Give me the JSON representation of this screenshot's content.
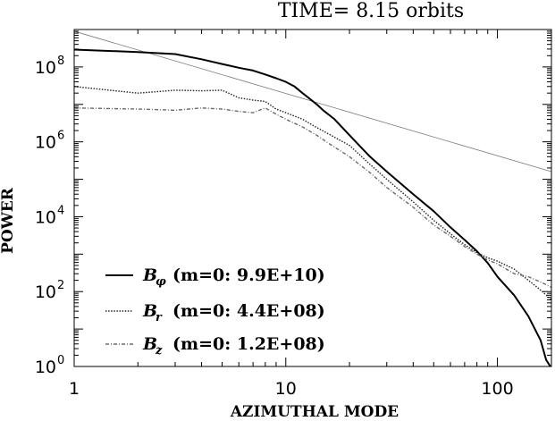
{
  "chart_data": {
    "type": "line",
    "title": "TIME= 8.15 orbits",
    "xlabel": "AZIMUTHAL MODE",
    "ylabel": "POWER",
    "xscale": "log",
    "yscale": "log",
    "xlim": [
      1,
      180
    ],
    "ylim": [
      1,
      1000000000.0
    ],
    "grid": false,
    "legend_position": "bottom-left",
    "x_ticks": [
      {
        "value": 1,
        "label": "1"
      },
      {
        "value": 10,
        "label": "10"
      },
      {
        "value": 100,
        "label": "100"
      }
    ],
    "y_ticks": [
      {
        "value": 1,
        "base": "10",
        "exp": "0"
      },
      {
        "value": 100,
        "base": "10",
        "exp": "2"
      },
      {
        "value": 10000,
        "base": "10",
        "exp": "4"
      },
      {
        "value": 1000000,
        "base": "10",
        "exp": "6"
      },
      {
        "value": 100000000,
        "base": "10",
        "exp": "8"
      }
    ],
    "series": [
      {
        "symbol": "B",
        "subscript": "φ",
        "label_text": "(m=0: 9.9E+10)",
        "style": "solid",
        "color": "#000000",
        "x": [
          1,
          2,
          3,
          4,
          5,
          6,
          7,
          8,
          9,
          10,
          11,
          12,
          13,
          14,
          15,
          17,
          20,
          25,
          30,
          40,
          50,
          60,
          70,
          80,
          90,
          100,
          120,
          140,
          160,
          170,
          180
        ],
        "y": [
          290000000.0,
          250000000.0,
          220000000.0,
          160000000.0,
          120000000.0,
          95000000.0,
          80000000.0,
          63000000.0,
          50000000.0,
          40000000.0,
          30000000.0,
          20000000.0,
          14000000.0,
          10000000.0,
          7000000.0,
          4000000.0,
          1500000.0,
          400000.0,
          160000.0,
          40000.0,
          14000.0,
          5200.0,
          2400.0,
          1200.0,
          580,
          250,
          80,
          22,
          5,
          1.5,
          0.9
        ]
      },
      {
        "symbol": "B",
        "subscript": "r",
        "label_text": "(m=0: 4.4E+08)",
        "style": "dotted",
        "color": "#222222",
        "x": [
          1,
          2,
          3,
          4,
          5,
          6,
          7,
          8,
          9,
          10,
          12,
          14,
          16,
          20,
          25,
          30,
          40,
          50,
          60,
          70,
          80,
          90,
          100,
          120,
          140,
          160,
          180
        ],
        "y": [
          30000000.0,
          20000000.0,
          24000000.0,
          23000000.0,
          24000000.0,
          15000000.0,
          13000000.0,
          12000000.0,
          7500000.0,
          6000000.0,
          4000000.0,
          2400000.0,
          1600000.0,
          800000.0,
          250000.0,
          100000.0,
          25000.0,
          8000.0,
          3500.0,
          1800.0,
          1100.0,
          800,
          650,
          400,
          200,
          110,
          60
        ]
      },
      {
        "symbol": "B",
        "subscript": "z",
        "label_text": "(m=0: 1.2E+08)",
        "style": "dash-dot",
        "color": "#6a6a6a",
        "x": [
          1,
          2,
          3,
          4,
          5,
          6,
          7,
          8,
          9,
          10,
          12,
          14,
          16,
          20,
          25,
          30,
          40,
          50,
          60,
          70,
          80,
          90,
          100,
          110,
          120,
          140,
          160,
          180
        ],
        "y": [
          8000000.0,
          7500000.0,
          7000000.0,
          8000000.0,
          7500000.0,
          6500000.0,
          6000000.0,
          8000000.0,
          5500000.0,
          4000000.0,
          2500000.0,
          1500000.0,
          900000.0,
          400000.0,
          150000.0,
          60000.0,
          18000.0,
          6000.0,
          3000.0,
          1600.0,
          1000.0,
          700,
          550,
          400,
          300,
          250,
          180,
          130
        ]
      }
    ],
    "reference_line": {
      "style": "thin",
      "color": "#777777",
      "x": [
        1,
        180
      ],
      "y": [
        900000000.0,
        160000.0
      ]
    }
  }
}
